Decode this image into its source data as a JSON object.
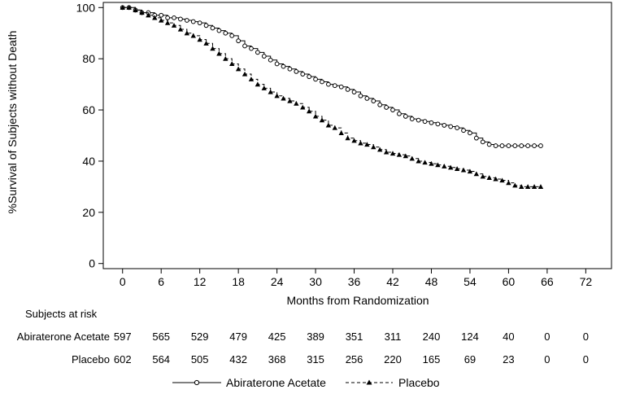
{
  "chart_data": {
    "type": "line",
    "xlabel": "Months from Randomization",
    "ylabel": "%Survival of Subjects without Death",
    "xlim": [
      -3,
      76
    ],
    "ylim": [
      -2,
      102
    ],
    "x_ticks": [
      0,
      6,
      12,
      18,
      24,
      30,
      36,
      42,
      48,
      54,
      60,
      66,
      72
    ],
    "y_ticks": [
      0,
      20,
      40,
      60,
      80,
      100
    ],
    "grid": false,
    "legend_position": "bottom-center",
    "series": [
      {
        "name": "Abiraterone Acetate",
        "color": "#000000",
        "line_style": "solid",
        "marker": "open-circle",
        "x": [
          0,
          1,
          2,
          3,
          4,
          5,
          6,
          7,
          8,
          9,
          10,
          11,
          12,
          13,
          14,
          15,
          16,
          17,
          18,
          19,
          20,
          21,
          22,
          23,
          24,
          25,
          26,
          27,
          28,
          29,
          30,
          31,
          32,
          33,
          34,
          35,
          36,
          37,
          38,
          39,
          40,
          41,
          42,
          43,
          44,
          45,
          46,
          47,
          48,
          49,
          50,
          51,
          52,
          53,
          54,
          55,
          56,
          57,
          58,
          59,
          60,
          61,
          62,
          63,
          64,
          65
        ],
        "y": [
          100,
          100,
          99,
          98,
          98,
          97,
          97,
          96,
          96,
          95.5,
          95,
          94.5,
          94,
          93,
          92,
          91,
          90,
          89,
          87,
          85,
          84,
          82.5,
          81,
          79.5,
          78,
          77,
          76,
          75,
          74,
          73,
          72,
          71,
          70,
          69.5,
          69,
          68,
          67,
          65.5,
          64.5,
          63.5,
          62,
          61,
          60,
          58.5,
          57.5,
          56.5,
          56,
          55.5,
          55,
          54.5,
          54,
          53.5,
          53,
          52,
          51,
          49,
          47.5,
          46.5,
          46,
          46,
          46,
          46,
          46,
          46,
          46,
          46
        ]
      },
      {
        "name": "Placebo",
        "color": "#000000",
        "line_style": "dashed",
        "marker": "filled-triangle",
        "x": [
          0,
          1,
          2,
          3,
          4,
          5,
          6,
          7,
          8,
          9,
          10,
          11,
          12,
          13,
          14,
          15,
          16,
          17,
          18,
          19,
          20,
          21,
          22,
          23,
          24,
          25,
          26,
          27,
          28,
          29,
          30,
          31,
          32,
          33,
          34,
          35,
          36,
          37,
          38,
          39,
          40,
          41,
          42,
          43,
          44,
          45,
          46,
          47,
          48,
          49,
          50,
          51,
          52,
          53,
          54,
          55,
          56,
          57,
          58,
          59,
          60,
          61,
          62,
          63,
          64,
          65
        ],
        "y": [
          100,
          100,
          99,
          98,
          97,
          96,
          95,
          94,
          93,
          91.5,
          90,
          89,
          87.5,
          86,
          84,
          82,
          80,
          78,
          76,
          74,
          72,
          70,
          68.5,
          67,
          65.5,
          64.5,
          63.5,
          62.5,
          61,
          59.5,
          57.5,
          56,
          54,
          53,
          51,
          49,
          48,
          47,
          46.5,
          45.5,
          44.5,
          43.5,
          43,
          42.5,
          42,
          41,
          40,
          39.5,
          39,
          38.5,
          38,
          37.5,
          37,
          36.5,
          36,
          35,
          34,
          33.5,
          33,
          32.5,
          31.5,
          30.5,
          30,
          30,
          30,
          30
        ]
      }
    ],
    "at_risk": {
      "heading": "Subjects at risk",
      "rows": [
        {
          "label": "Abiraterone Acetate",
          "values": [
            "597",
            "565",
            "529",
            "479",
            "425",
            "389",
            "351",
            "311",
            "240",
            "124",
            "40",
            "0",
            "0"
          ]
        },
        {
          "label": "Placebo",
          "values": [
            "602",
            "564",
            "505",
            "432",
            "368",
            "315",
            "256",
            "220",
            "165",
            "69",
            "23",
            "0",
            "0"
          ]
        }
      ]
    }
  }
}
